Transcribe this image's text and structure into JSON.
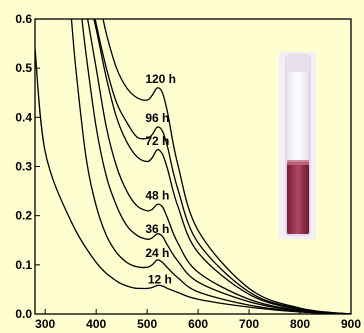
{
  "chart_data": {
    "type": "line",
    "title": "",
    "xlabel": "",
    "ylabel": "",
    "xlim": [
      280,
      900
    ],
    "ylim": [
      0,
      0.6
    ],
    "x_ticks": [
      "300",
      "400",
      "500",
      "600",
      "700",
      "800",
      "900"
    ],
    "y_ticks": [
      "0.0",
      "0.1",
      "0.2",
      "0.3",
      "0.4",
      "0.5",
      "0.6"
    ],
    "grid": false,
    "legend": "none",
    "colors": {
      "background": "#fffed0",
      "line": "#000000",
      "axis": "#000000"
    },
    "series": [
      {
        "name": "12 h",
        "label_at": [
          525,
          0.052
        ],
        "x": [
          280,
          300,
          350,
          400,
          440,
          470,
          490,
          500,
          510,
          520,
          530,
          540,
          560,
          600,
          700,
          800,
          900
        ],
        "y": [
          0.54,
          0.33,
          0.19,
          0.105,
          0.067,
          0.054,
          0.052,
          0.052,
          0.054,
          0.058,
          0.057,
          0.052,
          0.044,
          0.03,
          0.014,
          0.004,
          0.0
        ]
      },
      {
        "name": "24 h",
        "label_at": [
          520,
          0.106
        ],
        "x": [
          350,
          360,
          380,
          400,
          420,
          440,
          460,
          480,
          500,
          510,
          520,
          530,
          540,
          560,
          600,
          700,
          800,
          900
        ],
        "y": [
          0.62,
          0.5,
          0.32,
          0.22,
          0.16,
          0.125,
          0.105,
          0.096,
          0.095,
          0.1,
          0.11,
          0.105,
          0.094,
          0.074,
          0.045,
          0.018,
          0.005,
          0.0
        ]
      },
      {
        "name": "36 h",
        "label_at": [
          520,
          0.155
        ],
        "x": [
          370,
          380,
          400,
          420,
          440,
          460,
          480,
          500,
          510,
          520,
          530,
          540,
          560,
          600,
          700,
          800,
          900
        ],
        "y": [
          0.62,
          0.53,
          0.38,
          0.28,
          0.22,
          0.18,
          0.16,
          0.152,
          0.155,
          0.163,
          0.158,
          0.14,
          0.108,
          0.065,
          0.025,
          0.006,
          0.0
        ]
      },
      {
        "name": "48 h",
        "label_at": [
          520,
          0.223
        ],
        "x": [
          380,
          400,
          420,
          440,
          460,
          480,
          500,
          510,
          520,
          530,
          540,
          560,
          600,
          700,
          800,
          900
        ],
        "y": [
          0.62,
          0.5,
          0.38,
          0.3,
          0.25,
          0.22,
          0.21,
          0.213,
          0.223,
          0.218,
          0.195,
          0.145,
          0.085,
          0.03,
          0.007,
          0.0
        ]
      },
      {
        "name": "72 h",
        "label_at": [
          520,
          0.334
        ],
        "x": [
          390,
          400,
          420,
          440,
          460,
          480,
          500,
          510,
          520,
          530,
          540,
          560,
          600,
          700,
          800,
          900
        ],
        "y": [
          0.62,
          0.58,
          0.48,
          0.4,
          0.35,
          0.32,
          0.31,
          0.318,
          0.334,
          0.325,
          0.295,
          0.22,
          0.125,
          0.04,
          0.009,
          0.0
        ]
      },
      {
        "name": "96 h",
        "label_at": [
          520,
          0.38
        ],
        "x": [
          395,
          400,
          420,
          440,
          460,
          480,
          500,
          510,
          520,
          530,
          540,
          560,
          600,
          700,
          800,
          900
        ],
        "y": [
          0.62,
          0.59,
          0.5,
          0.43,
          0.39,
          0.36,
          0.357,
          0.365,
          0.38,
          0.372,
          0.34,
          0.255,
          0.145,
          0.045,
          0.01,
          0.0
        ]
      },
      {
        "name": "120 h",
        "label_at": [
          520,
          0.46
        ],
        "x": [
          410,
          420,
          440,
          460,
          480,
          500,
          510,
          520,
          530,
          540,
          560,
          600,
          700,
          800,
          900
        ],
        "y": [
          0.62,
          0.57,
          0.5,
          0.46,
          0.44,
          0.435,
          0.445,
          0.46,
          0.45,
          0.41,
          0.305,
          0.17,
          0.052,
          0.012,
          0.0
        ]
      }
    ],
    "inset": {
      "kind": "photo of vial with red-brown liquid"
    }
  }
}
